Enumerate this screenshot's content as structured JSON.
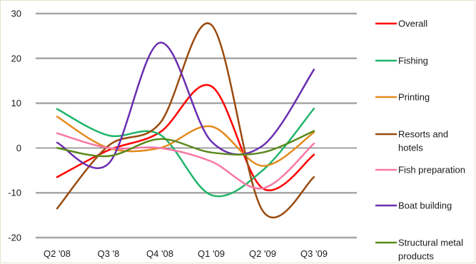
{
  "chart_data": {
    "type": "line",
    "title": "",
    "xlabel": "",
    "ylabel": "",
    "categories": [
      "Q2 '08",
      "Q3 '8",
      "Q4 '08",
      "Q1 '09",
      "Q2 '09",
      "Q3 '09"
    ],
    "ylim": [
      -20,
      30
    ],
    "yticks": [
      -20,
      -10,
      0,
      10,
      20,
      30
    ],
    "grid": true,
    "legend_position": "right",
    "series": [
      {
        "name": "Overall",
        "color": "#ff0000",
        "values": [
          -6.5,
          -0.5,
          3.5,
          13.8,
          -9,
          -1.5
        ]
      },
      {
        "name": "Fishing",
        "color": "#1fb56a",
        "values": [
          8.7,
          2.8,
          3,
          -10.5,
          -5,
          8.8
        ]
      },
      {
        "name": "Printing",
        "color": "#e58a1f",
        "values": [
          7,
          0,
          0,
          4.8,
          -4,
          3.5
        ]
      },
      {
        "name": "Resorts and\nhotels",
        "color": "#9a4a0e",
        "values": [
          -13.5,
          0.5,
          5.5,
          27.5,
          -14,
          -6.5
        ]
      },
      {
        "name": "Fish preparation",
        "color": "#f778a8",
        "values": [
          3.3,
          0,
          0,
          -3,
          -9,
          1
        ]
      },
      {
        "name": "Boat building",
        "color": "#6a2db0",
        "values": [
          1.2,
          -3.5,
          23.5,
          1.5,
          0.5,
          17.5
        ]
      },
      {
        "name": "Structural metal\nproducts",
        "color": "#5a8a1c",
        "values": [
          0,
          -1.8,
          2,
          -1,
          -1,
          3.8
        ]
      }
    ]
  }
}
